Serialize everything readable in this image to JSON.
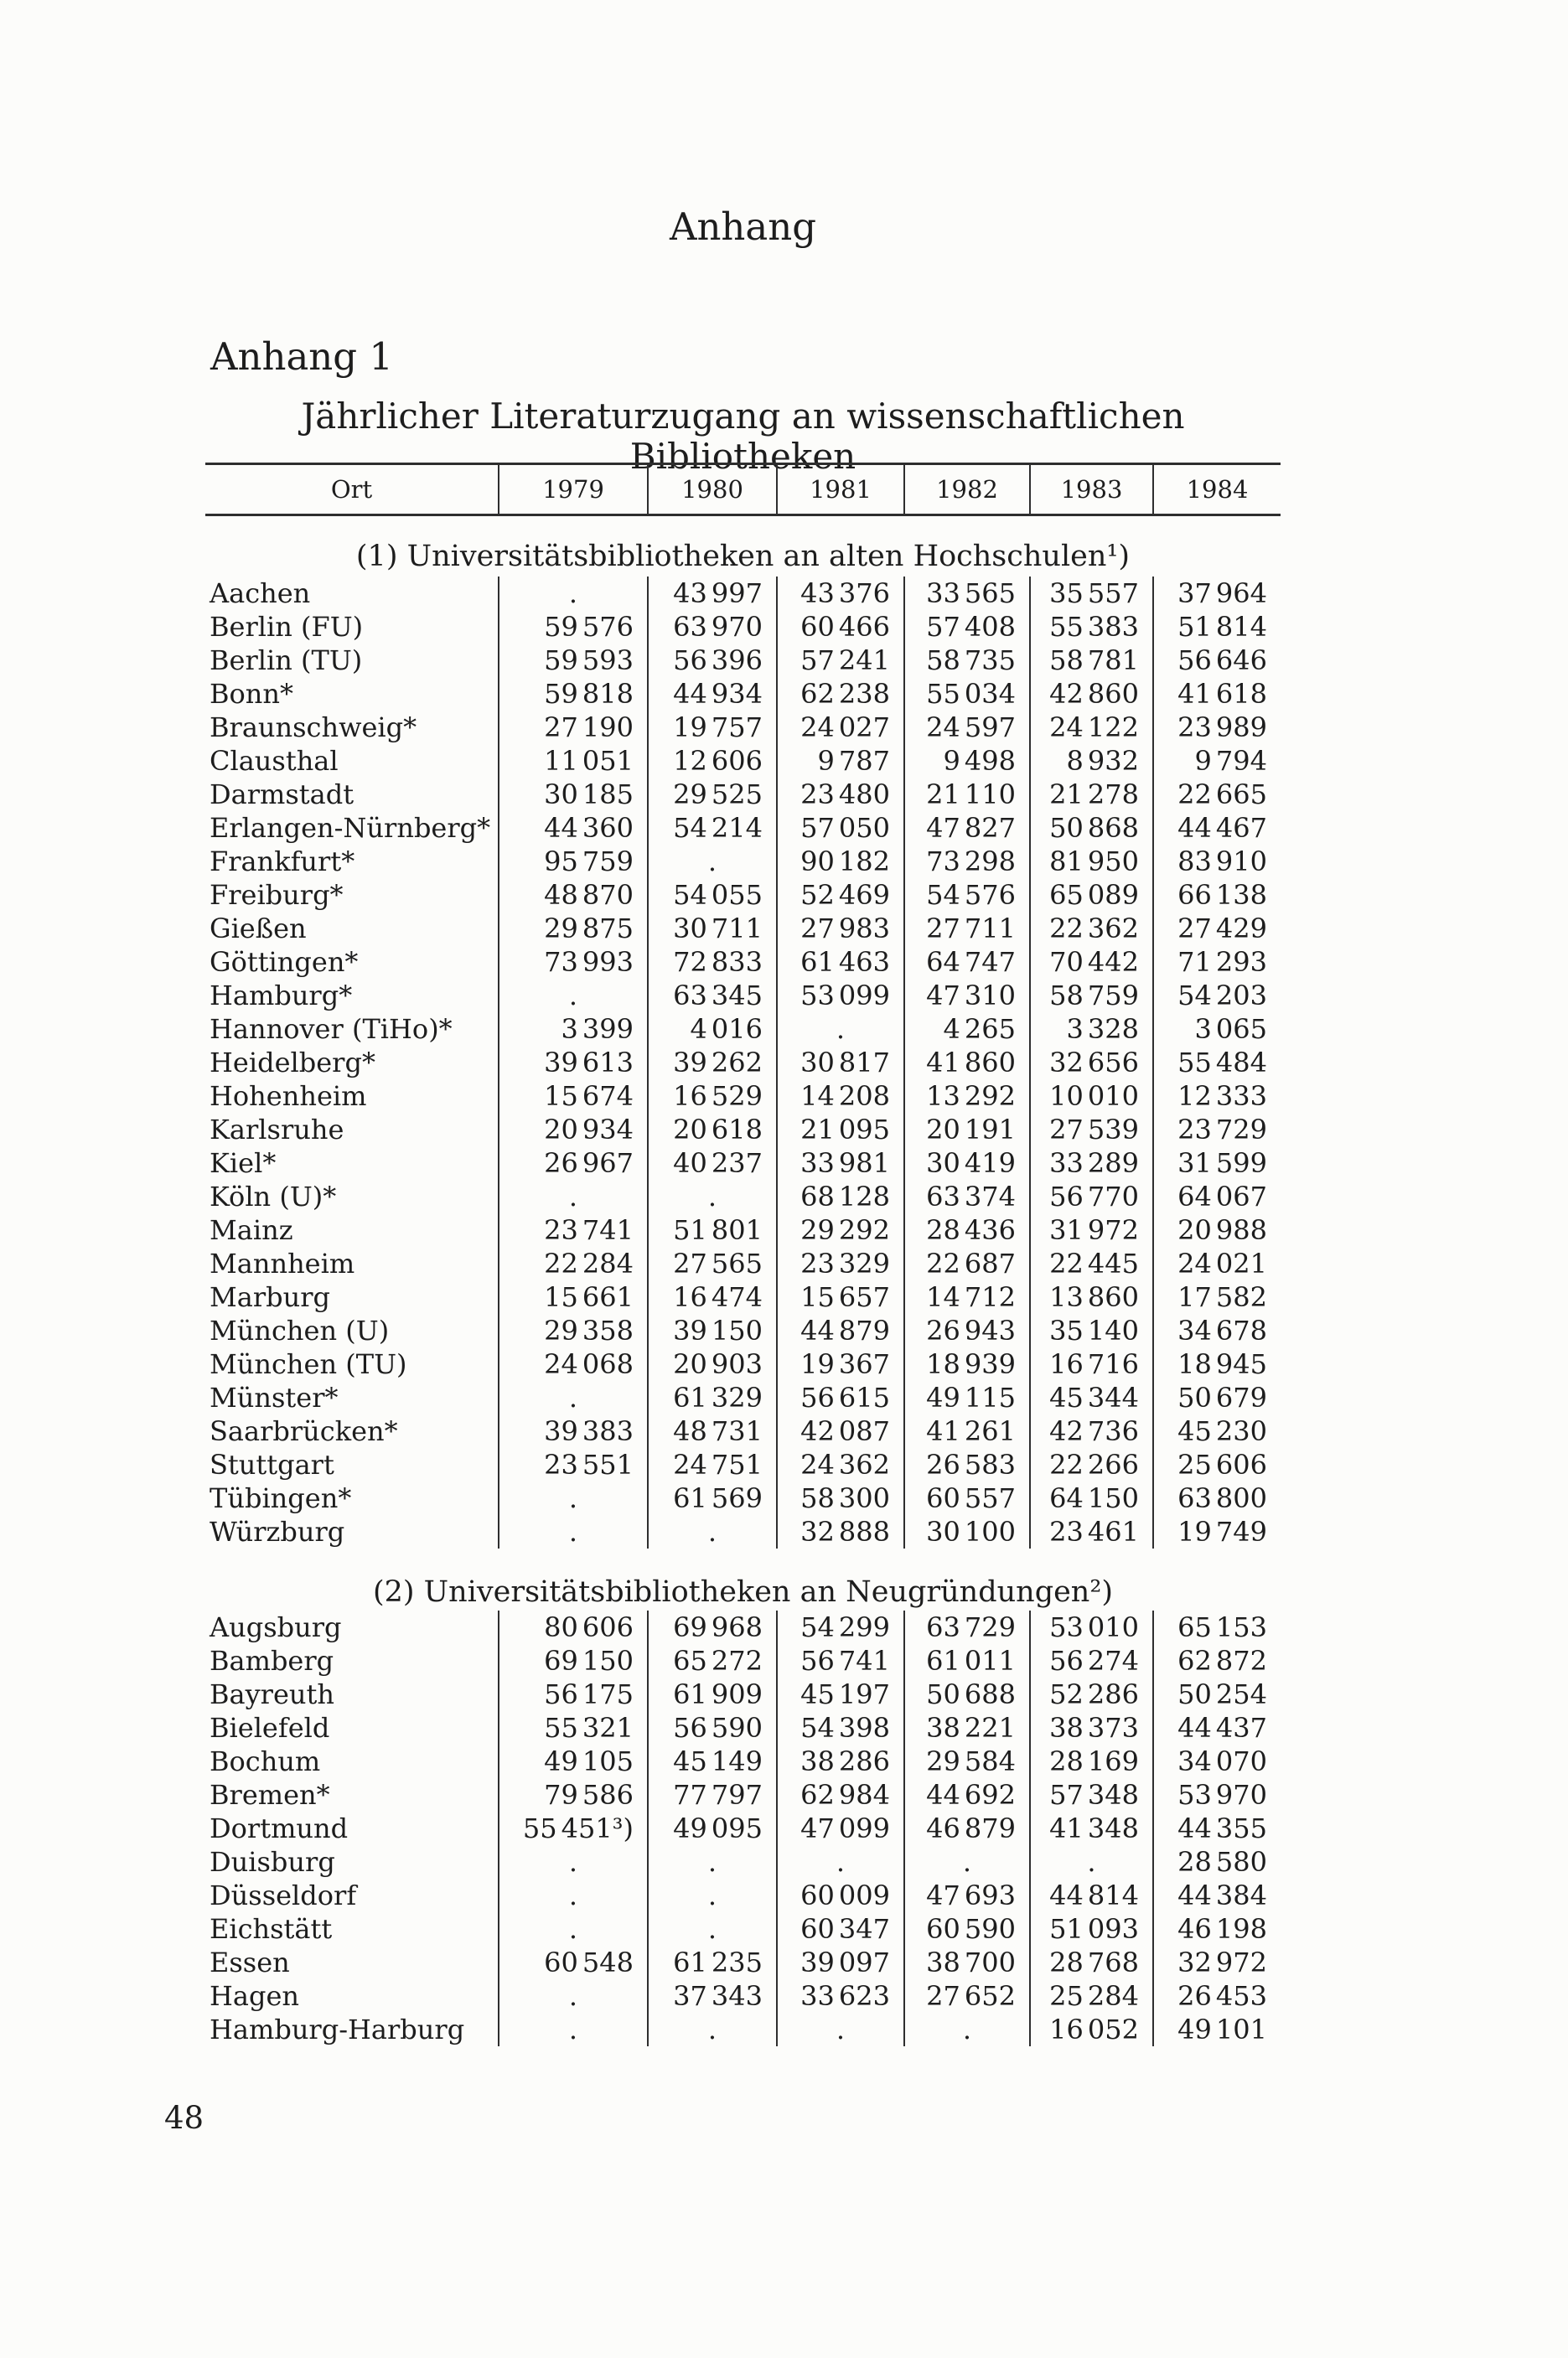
{
  "colors": {
    "ink": "#1d1d1d",
    "paper": "#fcfcfa",
    "rule": "#2e2e2e"
  },
  "page": {
    "running_head": "Anhang",
    "appendix_heading": "Anhang 1",
    "table_title": "Jährlicher Literaturzugang an wissenschaftlichen Bibliotheken",
    "page_number": "48"
  },
  "table": {
    "columns": [
      "Ort",
      "1979",
      "1980",
      "1981",
      "1982",
      "1983",
      "1984"
    ],
    "missing_marker": ".",
    "sections": [
      {
        "heading": "(1) Universitätsbibliotheken an alten Hochschulen¹)",
        "rows": [
          {
            "ort": "Aachen",
            "values": [
              ".",
              "43 997",
              "43 376",
              "33 565",
              "35 557",
              "37 964"
            ]
          },
          {
            "ort": "Berlin (FU)",
            "values": [
              "59 576",
              "63 970",
              "60 466",
              "57 408",
              "55 383",
              "51 814"
            ]
          },
          {
            "ort": "Berlin (TU)",
            "values": [
              "59 593",
              "56 396",
              "57 241",
              "58 735",
              "58 781",
              "56 646"
            ]
          },
          {
            "ort": "Bonn*",
            "values": [
              "59 818",
              "44 934",
              "62 238",
              "55 034",
              "42 860",
              "41 618"
            ]
          },
          {
            "ort": "Braunschweig*",
            "values": [
              "27 190",
              "19 757",
              "24 027",
              "24 597",
              "24 122",
              "23 989"
            ]
          },
          {
            "ort": "Clausthal",
            "values": [
              "11 051",
              "12 606",
              "9 787",
              "9 498",
              "8 932",
              "9 794"
            ]
          },
          {
            "ort": "Darmstadt",
            "values": [
              "30 185",
              "29 525",
              "23 480",
              "21 110",
              "21 278",
              "22 665"
            ]
          },
          {
            "ort": "Erlangen-Nürnberg*",
            "values": [
              "44 360",
              "54 214",
              "57 050",
              "47 827",
              "50 868",
              "44 467"
            ]
          },
          {
            "ort": "Frankfurt*",
            "values": [
              "95 759",
              ".",
              "90 182",
              "73 298",
              "81 950",
              "83 910"
            ]
          },
          {
            "ort": "Freiburg*",
            "values": [
              "48 870",
              "54 055",
              "52 469",
              "54 576",
              "65 089",
              "66 138"
            ]
          },
          {
            "ort": "Gießen",
            "values": [
              "29 875",
              "30 711",
              "27 983",
              "27 711",
              "22 362",
              "27 429"
            ]
          },
          {
            "ort": "Göttingen*",
            "values": [
              "73 993",
              "72 833",
              "61 463",
              "64 747",
              "70 442",
              "71 293"
            ]
          },
          {
            "ort": "Hamburg*",
            "values": [
              ".",
              "63 345",
              "53 099",
              "47 310",
              "58 759",
              "54 203"
            ]
          },
          {
            "ort": "Hannover (TiHo)*",
            "values": [
              "3 399",
              "4 016",
              ".",
              "4 265",
              "3 328",
              "3 065"
            ]
          },
          {
            "ort": "Heidelberg*",
            "values": [
              "39 613",
              "39 262",
              "30 817",
              "41 860",
              "32 656",
              "55 484"
            ]
          },
          {
            "ort": "Hohenheim",
            "values": [
              "15 674",
              "16 529",
              "14 208",
              "13 292",
              "10 010",
              "12 333"
            ]
          },
          {
            "ort": "Karlsruhe",
            "values": [
              "20 934",
              "20 618",
              "21 095",
              "20 191",
              "27 539",
              "23 729"
            ]
          },
          {
            "ort": "Kiel*",
            "values": [
              "26 967",
              "40 237",
              "33 981",
              "30 419",
              "33 289",
              "31 599"
            ]
          },
          {
            "ort": "Köln (U)*",
            "values": [
              ".",
              ".",
              "68 128",
              "63 374",
              "56 770",
              "64 067"
            ]
          },
          {
            "ort": "Mainz",
            "values": [
              "23 741",
              "51 801",
              "29 292",
              "28 436",
              "31 972",
              "20 988"
            ]
          },
          {
            "ort": "Mannheim",
            "values": [
              "22 284",
              "27 565",
              "23 329",
              "22 687",
              "22 445",
              "24 021"
            ]
          },
          {
            "ort": "Marburg",
            "values": [
              "15 661",
              "16 474",
              "15 657",
              "14 712",
              "13 860",
              "17 582"
            ]
          },
          {
            "ort": "München (U)",
            "values": [
              "29 358",
              "39 150",
              "44 879",
              "26 943",
              "35 140",
              "34 678"
            ]
          },
          {
            "ort": "München (TU)",
            "values": [
              "24 068",
              "20 903",
              "19 367",
              "18 939",
              "16 716",
              "18 945"
            ]
          },
          {
            "ort": "Münster*",
            "values": [
              ".",
              "61 329",
              "56 615",
              "49 115",
              "45 344",
              "50 679"
            ]
          },
          {
            "ort": "Saarbrücken*",
            "values": [
              "39 383",
              "48 731",
              "42 087",
              "41 261",
              "42 736",
              "45 230"
            ]
          },
          {
            "ort": "Stuttgart",
            "values": [
              "23 551",
              "24 751",
              "24 362",
              "26 583",
              "22 266",
              "25 606"
            ]
          },
          {
            "ort": "Tübingen*",
            "values": [
              ".",
              "61 569",
              "58 300",
              "60 557",
              "64 150",
              "63 800"
            ]
          },
          {
            "ort": "Würzburg",
            "values": [
              ".",
              ".",
              "32 888",
              "30 100",
              "23 461",
              "19 749"
            ]
          }
        ]
      },
      {
        "heading": "(2) Universitätsbibliotheken an Neugründungen²)",
        "rows": [
          {
            "ort": "Augsburg",
            "values": [
              "80 606",
              "69 968",
              "54 299",
              "63 729",
              "53 010",
              "65 153"
            ]
          },
          {
            "ort": "Bamberg",
            "values": [
              "69 150",
              "65 272",
              "56 741",
              "61 011",
              "56 274",
              "62 872"
            ]
          },
          {
            "ort": "Bayreuth",
            "values": [
              "56 175",
              "61 909",
              "45 197",
              "50 688",
              "52 286",
              "50 254"
            ]
          },
          {
            "ort": "Bielefeld",
            "values": [
              "55 321",
              "56 590",
              "54 398",
              "38 221",
              "38 373",
              "44 437"
            ]
          },
          {
            "ort": "Bochum",
            "values": [
              "49 105",
              "45 149",
              "38 286",
              "29 584",
              "28 169",
              "34 070"
            ]
          },
          {
            "ort": "Bremen*",
            "values": [
              "79 586",
              "77 797",
              "62 984",
              "44 692",
              "57 348",
              "53 970"
            ]
          },
          {
            "ort": "Dortmund",
            "values": [
              "55 451³)",
              "49 095",
              "47 099",
              "46 879",
              "41 348",
              "44 355"
            ]
          },
          {
            "ort": "Duisburg",
            "values": [
              ".",
              ".",
              ".",
              ".",
              ".",
              "28 580"
            ]
          },
          {
            "ort": "Düsseldorf",
            "values": [
              ".",
              ".",
              "60 009",
              "47 693",
              "44 814",
              "44 384"
            ]
          },
          {
            "ort": "Eichstätt",
            "values": [
              ".",
              ".",
              "60 347",
              "60 590",
              "51 093",
              "46 198"
            ]
          },
          {
            "ort": "Essen",
            "values": [
              "60 548",
              "61 235",
              "39 097",
              "38 700",
              "28 768",
              "32 972"
            ]
          },
          {
            "ort": "Hagen",
            "values": [
              ".",
              "37 343",
              "33 623",
              "27 652",
              "25 284",
              "26 453"
            ]
          },
          {
            "ort": "Hamburg-Harburg",
            "values": [
              ".",
              ".",
              ".",
              ".",
              "16 052",
              "49 101"
            ]
          }
        ]
      }
    ]
  }
}
